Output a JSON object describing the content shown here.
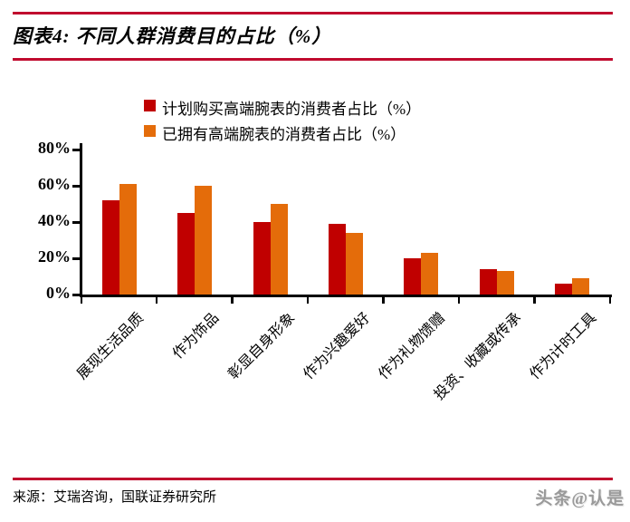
{
  "header": {
    "title": "图表4: 不同人群消费目的占比（%）"
  },
  "chart_data": {
    "type": "bar",
    "title": "不同人群消费目的占比（%）",
    "categories": [
      "展现生活品质",
      "作为饰品",
      "彰显自身形象",
      "作为兴趣爱好",
      "作为礼物馈赠",
      "投资、收藏或传承",
      "作为计时工具"
    ],
    "series": [
      {
        "name": "计划购买高端腕表的消费者占比（%）",
        "color": "#c00000",
        "values": [
          52,
          45,
          40,
          39,
          20,
          14,
          6
        ]
      },
      {
        "name": "已拥有高端腕表的消费者占比（%）",
        "color": "#e46c0a",
        "values": [
          61,
          60,
          50,
          34,
          23,
          13,
          9
        ]
      }
    ],
    "ylim": [
      0,
      80
    ],
    "yticks": [
      0,
      20,
      40,
      60,
      80
    ],
    "ytick_format": "{v}%",
    "grid": false,
    "legend_position": "top-center"
  },
  "footer": {
    "source": "来源：艾瑞咨询，国联证券研究所",
    "watermark": "头条@认是"
  },
  "colors": {
    "rule": "#c00a2e",
    "axis": "#000000",
    "watermark": "#9a9a9a"
  }
}
